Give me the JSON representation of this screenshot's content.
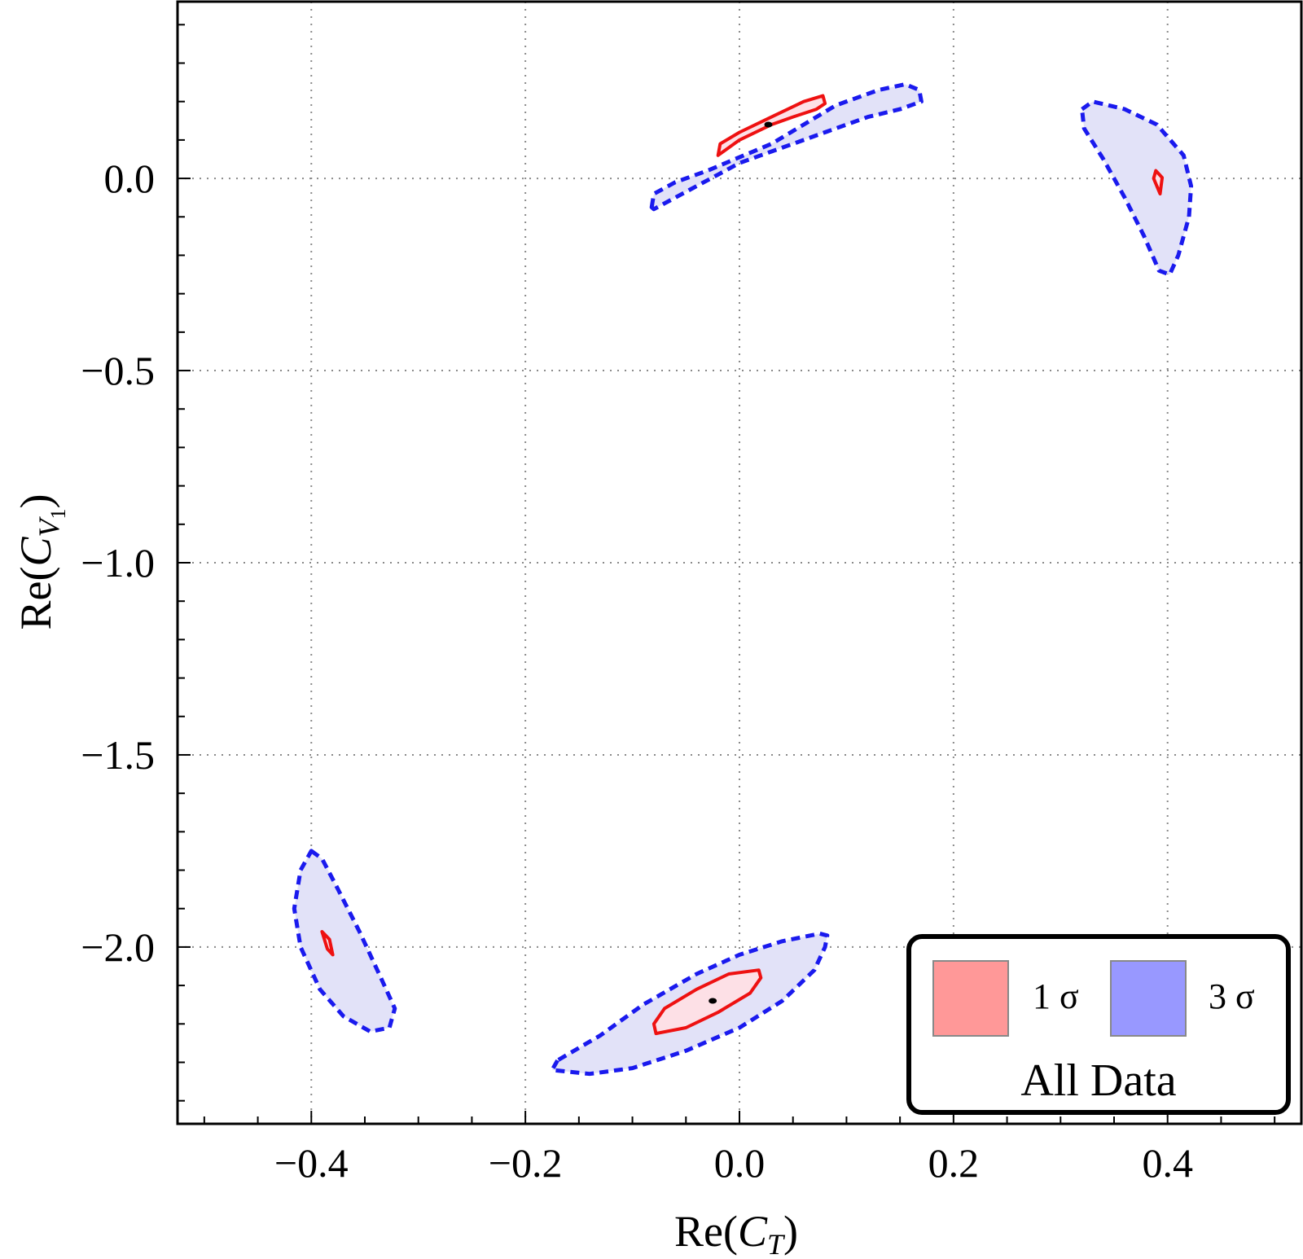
{
  "chart_data": {
    "type": "contour",
    "title": "",
    "xlabel": {
      "prefix": "Re(",
      "var": "C",
      "sub": "T",
      "suffix": ")"
    },
    "ylabel": {
      "prefix": "Re(",
      "var": "C",
      "sub": "V",
      "subsub": "1",
      "suffix": ")"
    },
    "xlim": [
      -0.525,
      0.525
    ],
    "ylim": [
      -2.46,
      0.46
    ],
    "xticks": [
      -0.4,
      -0.2,
      0.0,
      0.2,
      0.4
    ],
    "xtick_labels": [
      "−0.4",
      "−0.2",
      "0.0",
      "0.2",
      "0.4"
    ],
    "yticks": [
      0.0,
      -0.5,
      -1.0,
      -1.5,
      -2.0
    ],
    "ytick_labels": [
      "0.0",
      "−0.5",
      "−1.0",
      "−1.5",
      "−2.0"
    ],
    "grid": true,
    "legend": {
      "position": "bottom-right",
      "entries": [
        {
          "label": "1 σ",
          "color": "#ff9898"
        },
        {
          "label": "3 σ",
          "color": "#9898ff"
        }
      ],
      "title": "All Data"
    },
    "colors": {
      "one_sigma_line": "#ee1111",
      "one_sigma_fill": "#fde0e6",
      "three_sigma_line": "#1a1aee",
      "three_sigma_fill": "#e2e2f8",
      "best_fit": "#000000"
    },
    "regions": [
      {
        "name": "upper-center",
        "three_sigma": [
          [
            -0.082,
            -0.075
          ],
          [
            -0.08,
            -0.04
          ],
          [
            -0.06,
            -0.01
          ],
          [
            -0.03,
            0.02
          ],
          [
            0.0,
            0.055
          ],
          [
            0.03,
            0.09
          ],
          [
            0.06,
            0.14
          ],
          [
            0.09,
            0.19
          ],
          [
            0.13,
            0.23
          ],
          [
            0.155,
            0.245
          ],
          [
            0.168,
            0.23
          ],
          [
            0.17,
            0.2
          ],
          [
            0.15,
            0.18
          ],
          [
            0.12,
            0.16
          ],
          [
            0.09,
            0.13
          ],
          [
            0.06,
            0.1
          ],
          [
            0.03,
            0.07
          ],
          [
            0.0,
            0.04
          ],
          [
            -0.02,
            0.01
          ],
          [
            -0.04,
            -0.02
          ],
          [
            -0.06,
            -0.05
          ],
          [
            -0.08,
            -0.08
          ]
        ],
        "one_sigma": [
          [
            -0.02,
            0.06
          ],
          [
            -0.018,
            0.09
          ],
          [
            0.0,
            0.12
          ],
          [
            0.03,
            0.16
          ],
          [
            0.06,
            0.2
          ],
          [
            0.078,
            0.215
          ],
          [
            0.08,
            0.195
          ],
          [
            0.072,
            0.18
          ],
          [
            0.05,
            0.16
          ],
          [
            0.03,
            0.14
          ],
          [
            0.0,
            0.1
          ],
          [
            -0.02,
            0.06
          ]
        ],
        "best_fit": [
          0.027,
          0.14
        ]
      },
      {
        "name": "upper-right",
        "three_sigma": [
          [
            0.32,
            0.18
          ],
          [
            0.33,
            0.2
          ],
          [
            0.36,
            0.18
          ],
          [
            0.39,
            0.14
          ],
          [
            0.415,
            0.06
          ],
          [
            0.422,
            -0.02
          ],
          [
            0.42,
            -0.1
          ],
          [
            0.41,
            -0.2
          ],
          [
            0.402,
            -0.25
          ],
          [
            0.392,
            -0.24
          ],
          [
            0.378,
            -0.15
          ],
          [
            0.36,
            -0.05
          ],
          [
            0.34,
            0.05
          ],
          [
            0.322,
            0.13
          ]
        ],
        "one_sigma": [
          [
            0.389,
            0.02
          ],
          [
            0.395,
            0.002
          ],
          [
            0.393,
            -0.04
          ],
          [
            0.387,
            0.0
          ],
          [
            0.389,
            0.02
          ]
        ],
        "best_fit": null
      },
      {
        "name": "lower-left",
        "three_sigma": [
          [
            -0.4,
            -1.75
          ],
          [
            -0.39,
            -1.77
          ],
          [
            -0.375,
            -1.85
          ],
          [
            -0.355,
            -1.96
          ],
          [
            -0.335,
            -2.08
          ],
          [
            -0.322,
            -2.16
          ],
          [
            -0.327,
            -2.21
          ],
          [
            -0.345,
            -2.22
          ],
          [
            -0.37,
            -2.18
          ],
          [
            -0.392,
            -2.11
          ],
          [
            -0.41,
            -2.0
          ],
          [
            -0.416,
            -1.9
          ],
          [
            -0.41,
            -1.8
          ]
        ],
        "one_sigma": [
          [
            -0.39,
            -1.96
          ],
          [
            -0.383,
            -1.98
          ],
          [
            -0.38,
            -2.02
          ],
          [
            -0.385,
            -2.005
          ],
          [
            -0.39,
            -1.96
          ]
        ],
        "best_fit": null
      },
      {
        "name": "lower-center",
        "three_sigma": [
          [
            -0.17,
            -2.295
          ],
          [
            -0.175,
            -2.32
          ],
          [
            -0.14,
            -2.33
          ],
          [
            -0.1,
            -2.315
          ],
          [
            -0.05,
            -2.27
          ],
          [
            0.0,
            -2.21
          ],
          [
            0.04,
            -2.14
          ],
          [
            0.07,
            -2.06
          ],
          [
            0.08,
            -2.0
          ],
          [
            0.082,
            -1.97
          ],
          [
            0.075,
            -1.965
          ],
          [
            0.04,
            -1.985
          ],
          [
            0.0,
            -2.02
          ],
          [
            -0.04,
            -2.07
          ],
          [
            -0.09,
            -2.15
          ],
          [
            -0.13,
            -2.23
          ],
          [
            -0.17,
            -2.295
          ]
        ],
        "one_sigma": [
          [
            -0.08,
            -2.2
          ],
          [
            -0.078,
            -2.225
          ],
          [
            -0.05,
            -2.21
          ],
          [
            -0.02,
            -2.17
          ],
          [
            0.01,
            -2.12
          ],
          [
            0.02,
            -2.08
          ],
          [
            0.018,
            -2.06
          ],
          [
            -0.01,
            -2.07
          ],
          [
            -0.04,
            -2.11
          ],
          [
            -0.07,
            -2.16
          ],
          [
            -0.08,
            -2.2
          ]
        ],
        "best_fit": [
          -0.025,
          -2.14
        ]
      }
    ]
  }
}
